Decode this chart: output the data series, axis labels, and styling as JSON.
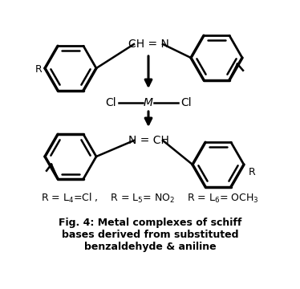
{
  "title_line1": "Fig. 4: Metal complexes of schiff",
  "title_line2": "bases derived from substituted",
  "title_line3": "benzaldehyde & aniline",
  "bg_color": "#ffffff",
  "fg_color": "#000000",
  "fig_width": 3.74,
  "fig_height": 3.6,
  "dpi": 100
}
